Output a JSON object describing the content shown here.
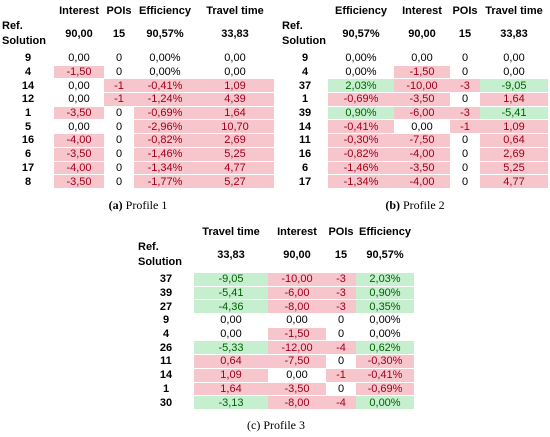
{
  "colors": {
    "pos": "#c6efcf",
    "neg": "#f6c6cc",
    "pos_text": "#006100",
    "neg_text": "#a0001b"
  },
  "ref_label": "Ref. Solution",
  "ref_label_line1": "Ref.",
  "ref_label_line2": "Solution",
  "tables": [
    {
      "caption_letter": "(a)",
      "caption_text": "Profile 1",
      "headers": [
        "Interest",
        "POIs",
        "Efficiency",
        "Travel time"
      ],
      "ref": [
        "90,00",
        "15",
        "90,57%",
        "33,83"
      ],
      "rows": [
        {
          "sol": "9",
          "cells": [
            {
              "v": "0,00",
              "c": "n"
            },
            {
              "v": "0",
              "c": "n"
            },
            {
              "v": "0,00%",
              "c": "n"
            },
            {
              "v": "0,00",
              "c": "n"
            }
          ]
        },
        {
          "sol": "4",
          "cells": [
            {
              "v": "-1,50",
              "c": "r"
            },
            {
              "v": "0",
              "c": "n"
            },
            {
              "v": "0,00%",
              "c": "n"
            },
            {
              "v": "0,00",
              "c": "n"
            }
          ]
        },
        {
          "sol": "14",
          "cells": [
            {
              "v": "0,00",
              "c": "n"
            },
            {
              "v": "-1",
              "c": "r"
            },
            {
              "v": "-0,41%",
              "c": "r"
            },
            {
              "v": "1,09",
              "c": "r"
            }
          ]
        },
        {
          "sol": "12",
          "cells": [
            {
              "v": "0,00",
              "c": "n"
            },
            {
              "v": "-1",
              "c": "r"
            },
            {
              "v": "-1,24%",
              "c": "r"
            },
            {
              "v": "4,39",
              "c": "r"
            }
          ]
        },
        {
          "sol": "1",
          "cells": [
            {
              "v": "-3,50",
              "c": "r"
            },
            {
              "v": "0",
              "c": "n"
            },
            {
              "v": "-0,69%",
              "c": "r"
            },
            {
              "v": "1,64",
              "c": "r"
            }
          ]
        },
        {
          "sol": "5",
          "cells": [
            {
              "v": "0,00",
              "c": "n"
            },
            {
              "v": "0",
              "c": "n"
            },
            {
              "v": "-2,96%",
              "c": "r"
            },
            {
              "v": "10,70",
              "c": "r"
            }
          ]
        },
        {
          "sol": "16",
          "cells": [
            {
              "v": "-4,00",
              "c": "r"
            },
            {
              "v": "0",
              "c": "n"
            },
            {
              "v": "-0,82%",
              "c": "r"
            },
            {
              "v": "2,69",
              "c": "r"
            }
          ]
        },
        {
          "sol": "6",
          "cells": [
            {
              "v": "-3,50",
              "c": "r"
            },
            {
              "v": "0",
              "c": "n"
            },
            {
              "v": "-1,46%",
              "c": "r"
            },
            {
              "v": "5,25",
              "c": "r"
            }
          ]
        },
        {
          "sol": "17",
          "cells": [
            {
              "v": "-4,00",
              "c": "r"
            },
            {
              "v": "0",
              "c": "n"
            },
            {
              "v": "-1,34%",
              "c": "r"
            },
            {
              "v": "4,77",
              "c": "r"
            }
          ]
        },
        {
          "sol": "8",
          "cells": [
            {
              "v": "-3,50",
              "c": "r"
            },
            {
              "v": "0",
              "c": "n"
            },
            {
              "v": "-1,77%",
              "c": "r"
            },
            {
              "v": "5,27",
              "c": "r"
            }
          ]
        }
      ]
    },
    {
      "caption_letter": "(b)",
      "caption_text": "Profile 2",
      "headers": [
        "Efficiency",
        "Interest",
        "POIs",
        "Travel time"
      ],
      "ref": [
        "90,57%",
        "90,00",
        "15",
        "33,83"
      ],
      "rows": [
        {
          "sol": "9",
          "cells": [
            {
              "v": "0,00%",
              "c": "n"
            },
            {
              "v": "0,00",
              "c": "n"
            },
            {
              "v": "0",
              "c": "n"
            },
            {
              "v": "0,00",
              "c": "n"
            }
          ]
        },
        {
          "sol": "4",
          "cells": [
            {
              "v": "0,00%",
              "c": "n"
            },
            {
              "v": "-1,50",
              "c": "r"
            },
            {
              "v": "0",
              "c": "n"
            },
            {
              "v": "0,00",
              "c": "n"
            }
          ]
        },
        {
          "sol": "37",
          "cells": [
            {
              "v": "2,03%",
              "c": "g"
            },
            {
              "v": "-10,00",
              "c": "r"
            },
            {
              "v": "-3",
              "c": "r"
            },
            {
              "v": "-9,05",
              "c": "g"
            }
          ]
        },
        {
          "sol": "1",
          "cells": [
            {
              "v": "-0,69%",
              "c": "r"
            },
            {
              "v": "-3,50",
              "c": "r"
            },
            {
              "v": "0",
              "c": "n"
            },
            {
              "v": "1,64",
              "c": "r"
            }
          ]
        },
        {
          "sol": "39",
          "cells": [
            {
              "v": "0,90%",
              "c": "g"
            },
            {
              "v": "-6,00",
              "c": "r"
            },
            {
              "v": "-3",
              "c": "r"
            },
            {
              "v": "-5,41",
              "c": "g"
            }
          ]
        },
        {
          "sol": "14",
          "cells": [
            {
              "v": "-0,41%",
              "c": "r"
            },
            {
              "v": "0,00",
              "c": "n"
            },
            {
              "v": "-1",
              "c": "r"
            },
            {
              "v": "1,09",
              "c": "r"
            }
          ]
        },
        {
          "sol": "11",
          "cells": [
            {
              "v": "-0,30%",
              "c": "r"
            },
            {
              "v": "-7,50",
              "c": "r"
            },
            {
              "v": "0",
              "c": "n"
            },
            {
              "v": "0,64",
              "c": "r"
            }
          ]
        },
        {
          "sol": "16",
          "cells": [
            {
              "v": "-0,82%",
              "c": "r"
            },
            {
              "v": "-4,00",
              "c": "r"
            },
            {
              "v": "0",
              "c": "n"
            },
            {
              "v": "2,69",
              "c": "r"
            }
          ]
        },
        {
          "sol": "6",
          "cells": [
            {
              "v": "-1,46%",
              "c": "r"
            },
            {
              "v": "-3,50",
              "c": "r"
            },
            {
              "v": "0",
              "c": "n"
            },
            {
              "v": "5,25",
              "c": "r"
            }
          ]
        },
        {
          "sol": "17",
          "cells": [
            {
              "v": "-1,34%",
              "c": "r"
            },
            {
              "v": "-4,00",
              "c": "r"
            },
            {
              "v": "0",
              "c": "n"
            },
            {
              "v": "4,77",
              "c": "r"
            }
          ]
        }
      ]
    },
    {
      "caption_letter": "(c)",
      "caption_text": "Profile 3",
      "headers": [
        "Travel time",
        "Interest",
        "POIs",
        "Efficiency"
      ],
      "ref": [
        "33,83",
        "90,00",
        "15",
        "90,57%"
      ],
      "rows": [
        {
          "sol": "37",
          "cells": [
            {
              "v": "-9,05",
              "c": "g"
            },
            {
              "v": "-10,00",
              "c": "r"
            },
            {
              "v": "-3",
              "c": "r"
            },
            {
              "v": "2,03%",
              "c": "g"
            }
          ]
        },
        {
          "sol": "39",
          "cells": [
            {
              "v": "-5,41",
              "c": "g"
            },
            {
              "v": "-6,00",
              "c": "r"
            },
            {
              "v": "-3",
              "c": "r"
            },
            {
              "v": "0,90%",
              "c": "g"
            }
          ]
        },
        {
          "sol": "27",
          "cells": [
            {
              "v": "-4,36",
              "c": "g"
            },
            {
              "v": "-8,00",
              "c": "r"
            },
            {
              "v": "-3",
              "c": "r"
            },
            {
              "v": "0,35%",
              "c": "g"
            }
          ]
        },
        {
          "sol": "9",
          "cells": [
            {
              "v": "0,00",
              "c": "n"
            },
            {
              "v": "0,00",
              "c": "n"
            },
            {
              "v": "0",
              "c": "n"
            },
            {
              "v": "0,00%",
              "c": "n"
            }
          ]
        },
        {
          "sol": "4",
          "cells": [
            {
              "v": "0,00",
              "c": "n"
            },
            {
              "v": "-1,50",
              "c": "r"
            },
            {
              "v": "0",
              "c": "n"
            },
            {
              "v": "0,00%",
              "c": "n"
            }
          ]
        },
        {
          "sol": "26",
          "cells": [
            {
              "v": "-5,33",
              "c": "g"
            },
            {
              "v": "-12,00",
              "c": "r"
            },
            {
              "v": "-4",
              "c": "r"
            },
            {
              "v": "0,62%",
              "c": "g"
            }
          ]
        },
        {
          "sol": "11",
          "cells": [
            {
              "v": "0,64",
              "c": "r"
            },
            {
              "v": "-7,50",
              "c": "r"
            },
            {
              "v": "0",
              "c": "n"
            },
            {
              "v": "-0,30%",
              "c": "r"
            }
          ]
        },
        {
          "sol": "14",
          "cells": [
            {
              "v": "1,09",
              "c": "r"
            },
            {
              "v": "0,00",
              "c": "n"
            },
            {
              "v": "-1",
              "c": "r"
            },
            {
              "v": "-0,41%",
              "c": "r"
            }
          ]
        },
        {
          "sol": "1",
          "cells": [
            {
              "v": "1,64",
              "c": "r"
            },
            {
              "v": "-3,50",
              "c": "r"
            },
            {
              "v": "0",
              "c": "n"
            },
            {
              "v": "-0,69%",
              "c": "r"
            }
          ]
        },
        {
          "sol": "30",
          "cells": [
            {
              "v": "-3,13",
              "c": "g"
            },
            {
              "v": "-8,00",
              "c": "r"
            },
            {
              "v": "-4",
              "c": "r"
            },
            {
              "v": "0,00%",
              "c": "g"
            }
          ]
        }
      ]
    }
  ]
}
